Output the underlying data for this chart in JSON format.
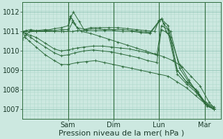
{
  "bg_color": "#cce8e0",
  "plot_bg_color": "#cce8e0",
  "grid_color_minor": "#b0d8cc",
  "grid_color_major": "#88bfb0",
  "line_color": "#2d6b3c",
  "xlabel": "Pression niveau de la mer( hPa )",
  "xlabel_fontsize": 8,
  "ylim": [
    1006.5,
    1012.5
  ],
  "yticks": [
    1007,
    1008,
    1009,
    1010,
    1011,
    1012
  ],
  "xtick_labels": [
    "Sam",
    "Dim",
    "Lun",
    "Mar"
  ],
  "xtick_positions": [
    1.0,
    2.0,
    3.0,
    4.0
  ],
  "xlim": [
    0.0,
    4.35
  ],
  "tick_fontsize": 7,
  "series": [
    {
      "x": [
        0.0,
        0.08,
        0.18,
        0.3,
        0.5,
        0.7,
        0.85,
        1.0,
        1.05,
        1.12,
        1.25,
        1.35,
        1.5,
        1.7,
        1.9,
        2.1,
        2.3,
        2.5,
        2.7,
        2.9,
        3.0,
        3.05,
        3.1,
        3.15,
        3.25,
        3.45,
        3.65,
        3.85,
        4.05,
        4.2
      ],
      "y": [
        1011.0,
        1011.05,
        1011.1,
        1011.05,
        1011.1,
        1011.05,
        1011.1,
        1011.1,
        1011.7,
        1012.0,
        1011.5,
        1011.1,
        1011.2,
        1011.2,
        1011.2,
        1011.2,
        1011.15,
        1011.1,
        1011.05,
        1011.0,
        1011.6,
        1011.65,
        1011.4,
        1011.0,
        1010.7,
        1009.3,
        1008.5,
        1007.8,
        1007.15,
        1007.0
      ]
    },
    {
      "x": [
        0.0,
        0.15,
        0.3,
        0.5,
        0.7,
        0.85,
        1.0,
        1.1,
        1.2,
        1.4,
        1.6,
        1.8,
        2.0,
        2.2,
        2.4,
        2.6,
        2.8,
        3.0,
        3.05,
        3.1,
        3.25,
        3.45,
        3.65,
        3.85,
        4.05,
        4.2
      ],
      "y": [
        1011.0,
        1011.0,
        1011.0,
        1011.05,
        1011.0,
        1011.0,
        1011.0,
        1011.5,
        1011.2,
        1011.1,
        1011.15,
        1011.1,
        1011.1,
        1011.1,
        1011.05,
        1011.0,
        1010.95,
        1011.55,
        1011.65,
        1011.4,
        1011.0,
        1009.1,
        1008.4,
        1007.9,
        1007.2,
        1007.0
      ]
    },
    {
      "x": [
        0.0,
        0.15,
        0.3,
        0.5,
        0.7,
        0.9,
        1.0,
        1.1,
        1.2,
        1.4,
        1.6,
        1.8,
        2.0,
        2.2,
        2.4,
        2.6,
        2.8,
        3.0,
        3.05,
        3.2,
        3.4,
        3.6,
        3.8,
        4.0,
        4.2
      ],
      "y": [
        1011.0,
        1011.0,
        1011.0,
        1011.0,
        1011.0,
        1011.0,
        1011.0,
        1011.0,
        1011.05,
        1011.05,
        1011.05,
        1011.05,
        1011.05,
        1011.0,
        1011.0,
        1010.95,
        1010.9,
        1011.5,
        1011.65,
        1011.3,
        1009.0,
        1008.4,
        1008.0,
        1007.4,
        1007.1
      ]
    },
    {
      "x": [
        0.0,
        0.08,
        0.18,
        0.3,
        0.5,
        0.7,
        0.85,
        1.0,
        1.1,
        1.2,
        1.35,
        1.55,
        1.75,
        1.95,
        2.15,
        2.35,
        2.55,
        2.75,
        2.95,
        3.05,
        3.2,
        3.4,
        3.6,
        3.8,
        4.0,
        4.2
      ],
      "y": [
        1011.0,
        1010.9,
        1010.8,
        1010.7,
        1010.4,
        1010.1,
        1010.0,
        1010.05,
        1010.1,
        1010.15,
        1010.2,
        1010.25,
        1010.25,
        1010.2,
        1010.15,
        1010.1,
        1010.0,
        1009.9,
        1009.8,
        1011.3,
        1011.1,
        1009.0,
        1008.4,
        1008.0,
        1007.35,
        1007.05
      ]
    },
    {
      "x": [
        0.0,
        0.08,
        0.18,
        0.3,
        0.5,
        0.7,
        0.85,
        1.0,
        1.15,
        1.35,
        1.55,
        1.75,
        1.95,
        2.15,
        2.35,
        2.55,
        2.75,
        2.95,
        3.05,
        3.2,
        3.4,
        3.6,
        3.8,
        4.0,
        4.2
      ],
      "y": [
        1011.0,
        1010.85,
        1010.7,
        1010.5,
        1010.2,
        1009.9,
        1009.75,
        1009.8,
        1009.9,
        1010.0,
        1010.05,
        1010.0,
        1009.95,
        1009.85,
        1009.75,
        1009.65,
        1009.5,
        1009.4,
        1011.1,
        1010.9,
        1008.8,
        1008.3,
        1007.9,
        1007.3,
        1007.0
      ]
    },
    {
      "x": [
        0.0,
        0.06,
        0.15,
        0.3,
        0.5,
        0.7,
        0.85,
        1.0,
        1.2,
        1.4,
        1.6,
        1.8,
        2.0,
        2.2,
        2.4,
        2.6,
        2.8,
        3.0,
        3.2,
        3.4,
        3.6,
        3.8,
        4.0,
        4.2
      ],
      "y": [
        1011.0,
        1010.7,
        1010.5,
        1010.2,
        1009.8,
        1009.5,
        1009.3,
        1009.3,
        1009.4,
        1009.45,
        1009.5,
        1009.4,
        1009.3,
        1009.2,
        1009.1,
        1009.0,
        1008.9,
        1008.8,
        1008.7,
        1008.4,
        1008.1,
        1007.7,
        1007.3,
        1007.0
      ]
    },
    {
      "x": [
        0.0,
        0.08,
        0.18,
        0.3,
        0.5,
        0.7,
        0.85,
        1.0,
        1.05,
        1.1,
        1.15,
        1.2,
        1.3,
        1.5,
        1.7,
        1.9,
        2.1,
        2.3,
        2.5,
        2.7,
        2.9,
        3.1,
        3.3,
        3.5,
        3.7,
        3.9,
        4.1,
        4.2
      ],
      "y": [
        1010.6,
        1010.85,
        1011.05,
        1011.0,
        1011.05,
        1011.15,
        1011.2,
        1011.3,
        1011.8,
        1011.6,
        1011.4,
        1011.2,
        1011.0,
        1010.9,
        1010.75,
        1010.6,
        1010.45,
        1010.3,
        1010.15,
        1010.0,
        1009.85,
        1009.7,
        1009.5,
        1009.2,
        1008.7,
        1008.2,
        1007.35,
        1007.1
      ]
    }
  ]
}
